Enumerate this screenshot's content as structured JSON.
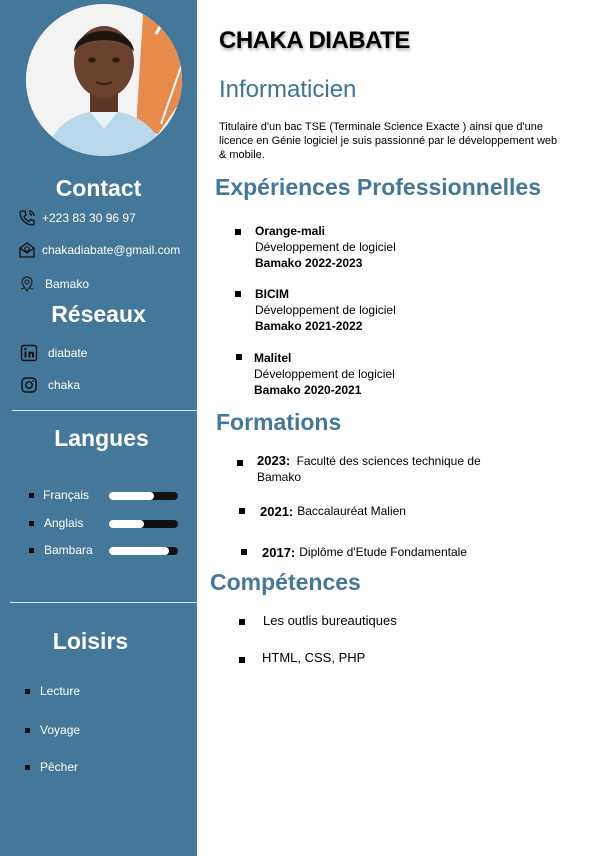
{
  "sidebar": {
    "contact_title": "Contact",
    "contacts": [
      {
        "icon": "phone-icon",
        "text": "+223 83 30 96 97"
      },
      {
        "icon": "email-icon",
        "text": "chakadiabate@gmail.com"
      },
      {
        "icon": "location-icon",
        "text": "Bamako"
      }
    ],
    "networks_title": "Réseaux",
    "networks": [
      {
        "icon": "linkedin-icon",
        "text": "diabate"
      },
      {
        "icon": "instagram-icon",
        "text": "chaka"
      }
    ],
    "languages_title": "Langues",
    "languages": [
      {
        "label": "Français",
        "level": 0.65
      },
      {
        "label": "Anglais",
        "level": 0.5
      },
      {
        "label": "Bambara",
        "level": 0.87
      }
    ],
    "leisure_title": "Loisirs",
    "leisure": [
      "Lecture",
      "Voyage",
      "Pêcher"
    ]
  },
  "header": {
    "name": "CHAKA DIABATE",
    "role": "Informaticien",
    "summary": "Titulaire d'un bac TSE (Terminale Science Exacte ) ainsi que d'une licence en Génie logiciel je suis passionné par le développement web & mobile."
  },
  "experience": {
    "title": "Expériences Professionnelles",
    "items": [
      {
        "company": "Orange-mali",
        "role": "Développement de logiciel",
        "place": "Bamako 2022-2023"
      },
      {
        "company": "BICIM",
        "role": "Développement de logiciel",
        "place": "Bamako 2021-2022"
      },
      {
        "company": "Malitel",
        "role": "Développement de logiciel",
        "place": "Bamako 2020-2021"
      }
    ]
  },
  "education": {
    "title": "Formations",
    "items": [
      {
        "year": "2023:",
        "text": "Faculté des sciences technique de",
        "text2": "Bamako"
      },
      {
        "year": "2021:",
        "text": "Baccalauréat Malien"
      },
      {
        "year": "2017:",
        "text": "Diplôme d'Etude Fondamentale"
      }
    ]
  },
  "skills": {
    "title": "Compétences",
    "items": [
      "Les outlis bureautiques",
      "HTML, CSS, PHP"
    ]
  },
  "colors": {
    "sidebar": "#43789a",
    "accent": "#43789a"
  }
}
